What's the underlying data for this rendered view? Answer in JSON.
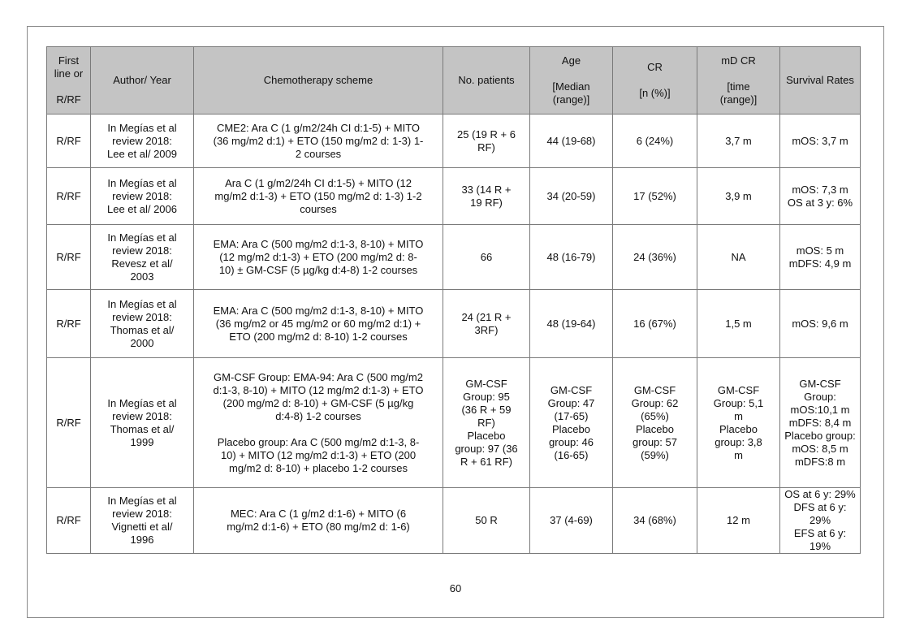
{
  "table": {
    "headers": [
      "First\nline or\n\nR/RF",
      "Author/ Year",
      "Chemotherapy scheme",
      "No. patients",
      "Age\n\n[Median\n(range)]",
      "CR\n\n[n (%)]",
      "mD CR\n\n[time\n(range)]",
      "Survival Rates"
    ],
    "rows": [
      [
        "R/RF",
        "In Megías et al\nreview 2018:\nLee et al/ 2009",
        "CME2: Ara C (1 g/m2/24h CI d:1-5) + MITO\n(36 mg/m2 d:1) + ETO (150 mg/m2 d: 1-3) 1-\n2 courses",
        "25 (19 R + 6\nRF)",
        "44 (19-68)",
        "6 (24%)",
        "3,7 m",
        "mOS: 3,7 m"
      ],
      [
        "R/RF",
        "In Megías et al\nreview 2018:\nLee et al/ 2006",
        "Ara C (1 g/m2/24h CI d:1-5) + MITO (12\nmg/m2 d:1-3) + ETO (150 mg/m2 d: 1-3) 1-2\ncourses",
        "33 (14 R +\n19 RF)",
        "34 (20-59)",
        "17 (52%)",
        "3,9 m",
        "mOS: 7,3 m\nOS at 3 y: 6%"
      ],
      [
        "R/RF",
        "In Megías et al\nreview 2018:\nRevesz et al/\n2003",
        "EMA: Ara C (500 mg/m2 d:1-3, 8-10) + MITO\n(12 mg/m2 d:1-3) + ETO (200 mg/m2 d: 8-\n10) ± GM-CSF (5 µg/kg d:4-8) 1-2 courses",
        "66",
        "48 (16-79)",
        "24 (36%)",
        "NA",
        "mOS: 5 m\nmDFS: 4,9 m"
      ],
      [
        "R/RF",
        "In Megías et al\nreview 2018:\nThomas et al/\n2000",
        "EMA: Ara C (500 mg/m2 d:1-3, 8-10) + MITO\n(36 mg/m2 or 45 mg/m2 or 60 mg/m2 d:1) +\nETO (200 mg/m2 d: 8-10) 1-2 courses",
        "24 (21 R +\n3RF)",
        "48 (19-64)",
        "16 (67%)",
        "1,5 m",
        "mOS: 9,6 m"
      ],
      [
        "R/RF",
        "In Megías et al\nreview 2018:\nThomas et al/\n1999",
        "GM-CSF Group: EMA-94: Ara C (500 mg/m2\nd:1-3, 8-10) + MITO (12 mg/m2 d:1-3) + ETO\n(200 mg/m2 d: 8-10) + GM-CSF (5 µg/kg\nd:4-8) 1-2 courses\n\nPlacebo group: Ara C (500 mg/m2 d:1-3, 8-\n10) + MITO (12 mg/m2 d:1-3) + ETO (200\nmg/m2 d: 8-10) + placebo 1-2 courses",
        "GM-CSF\nGroup: 95\n(36 R + 59\nRF)\nPlacebo\ngroup: 97 (36\nR + 61 RF)",
        "GM-CSF\nGroup: 47\n(17-65)\nPlacebo\ngroup: 46\n(16-65)",
        "GM-CSF\nGroup: 62\n(65%)\nPlacebo\ngroup: 57\n(59%)",
        "GM-CSF\nGroup: 5,1\nm\nPlacebo\ngroup: 3,8\nm",
        "GM-CSF Group:\nmOS:10,1 m\nmDFS: 8,4 m\nPlacebo group:\nmOS: 8,5 m\nmDFS:8 m"
      ],
      [
        "R/RF",
        "In Megías et al\nreview 2018:\nVignetti et al/\n1996",
        "MEC: Ara C (1 g/m2 d:1-6) + MITO (6\nmg/m2 d:1-6) + ETO (80 mg/m2 d: 1-6)",
        "50 R",
        "37 (4-69)",
        "34 (68%)",
        "12 m",
        "OS at 6 y: 29%\nDFS at 6 y: 29%\nEFS at 6 y: 19%"
      ]
    ]
  },
  "page_number": "60"
}
